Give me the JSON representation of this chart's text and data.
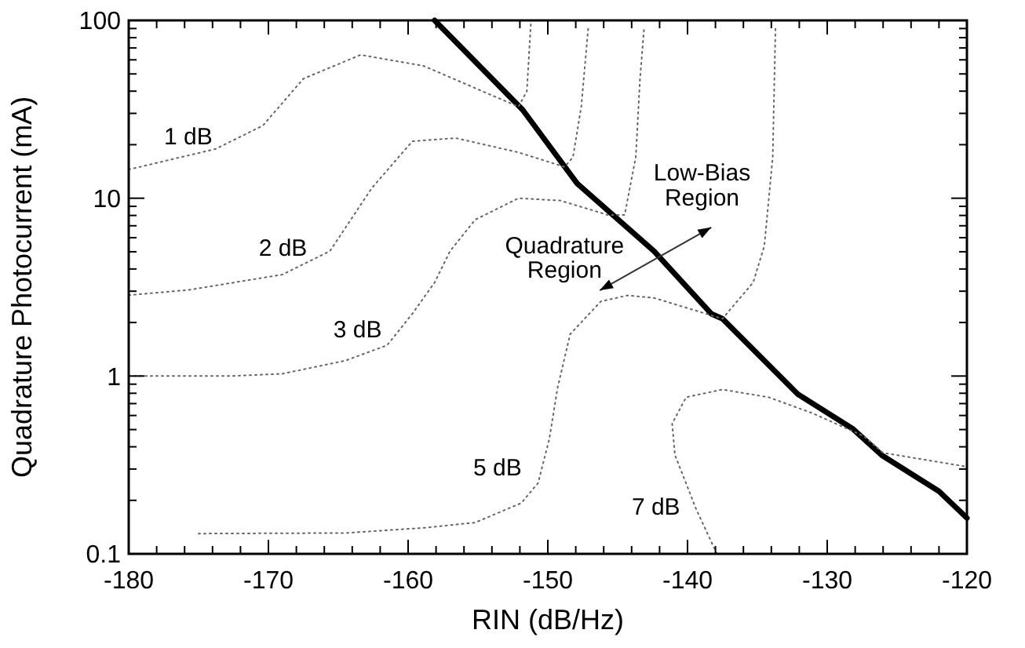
{
  "chart_data": {
    "type": "line",
    "xlabel": "RIN (dB/Hz)",
    "ylabel": "Quadrature Photocurrent (mA)",
    "log": "y",
    "grid": false,
    "xlim": [
      -180,
      -120
    ],
    "xticks": [
      {
        "value": -180,
        "label": "-180"
      },
      {
        "value": -178,
        "label": null
      },
      {
        "value": -176,
        "label": null
      },
      {
        "value": -174,
        "label": null
      },
      {
        "value": -172,
        "label": null
      },
      {
        "value": -170,
        "label": "-170"
      },
      {
        "value": -168,
        "label": null
      },
      {
        "value": -166,
        "label": null
      },
      {
        "value": -164,
        "label": null
      },
      {
        "value": -162,
        "label": null
      },
      {
        "value": -160,
        "label": "-160"
      },
      {
        "value": -158,
        "label": null
      },
      {
        "value": -156,
        "label": null
      },
      {
        "value": -154,
        "label": null
      },
      {
        "value": -152,
        "label": null
      },
      {
        "value": -150,
        "label": "-150"
      },
      {
        "value": -148,
        "label": null
      },
      {
        "value": -146,
        "label": null
      },
      {
        "value": -144,
        "label": null
      },
      {
        "value": -142,
        "label": null
      },
      {
        "value": -140,
        "label": "-140"
      },
      {
        "value": -138,
        "label": null
      },
      {
        "value": -136,
        "label": null
      },
      {
        "value": -134,
        "label": null
      },
      {
        "value": -132,
        "label": null
      },
      {
        "value": -130,
        "label": "-130"
      },
      {
        "value": -128,
        "label": null
      },
      {
        "value": -126,
        "label": null
      },
      {
        "value": -124,
        "label": null
      },
      {
        "value": -122,
        "label": null
      },
      {
        "value": -120,
        "label": "-120"
      }
    ],
    "ylim": [
      0.1,
      100
    ],
    "yticks": [
      0.1,
      {
        "value": 0.2,
        "label": null
      },
      {
        "value": 0.3,
        "label": null
      },
      {
        "value": 0.4,
        "label": null
      },
      {
        "value": 0.5,
        "label": null
      },
      {
        "value": 0.6,
        "label": null
      },
      {
        "value": 0.7,
        "label": null
      },
      {
        "value": 0.8,
        "label": null
      },
      {
        "value": 0.9,
        "label": null
      },
      1,
      {
        "value": 2,
        "label": null
      },
      {
        "value": 3,
        "label": null
      },
      {
        "value": 4,
        "label": null
      },
      {
        "value": 5,
        "label": null
      },
      {
        "value": 6,
        "label": null
      },
      {
        "value": 7,
        "label": null
      },
      {
        "value": 8,
        "label": null
      },
      {
        "value": 9,
        "label": null
      },
      10,
      {
        "value": 20,
        "label": null
      },
      {
        "value": 30,
        "label": null
      },
      {
        "value": 40,
        "label": null
      },
      {
        "value": 50,
        "label": null
      },
      {
        "value": 60,
        "label": null
      },
      {
        "value": 70,
        "label": null
      },
      {
        "value": 80,
        "label": null
      },
      {
        "value": 90,
        "label": null
      },
      100
    ],
    "series": [
      {
        "color": "#000000",
        "line_style": "solid",
        "x": [
          -158.1,
          -151.8,
          -147.9,
          -142.4,
          -138.3,
          -137.5,
          -132.1,
          -128.2,
          -126.1,
          -122.0,
          -120
        ],
        "values": [
          100,
          31.4,
          12.1,
          5.04,
          2.24,
          2.1,
          0.79,
          0.507,
          0.359,
          0.225,
          0.159
        ]
      },
      {
        "color": "#666666",
        "line_style": "dotted",
        "x": [
          -180,
          -173.8,
          -170.4,
          -167.5,
          -163.4,
          -158.9,
          -152.1,
          -151.5,
          -151.2
        ],
        "values": [
          14.5,
          18.9,
          25.6,
          47,
          64,
          55.5,
          32.7,
          40,
          100
        ]
      },
      {
        "color": "#666666",
        "line_style": "dotted",
        "x": [
          -180,
          -175.7,
          -169,
          -165.6,
          -162.6,
          -159.7,
          -156.6,
          -152.1,
          -148.8,
          -148.2,
          -147.6,
          -147.1
        ],
        "values": [
          2.85,
          3.05,
          3.72,
          5.04,
          11.4,
          20.9,
          21.8,
          18.1,
          15,
          17,
          33,
          92
        ]
      },
      {
        "color": "#666666",
        "line_style": "dotted",
        "x": [
          -180,
          -172.7,
          -169,
          -164.5,
          -161.5,
          -159.7,
          -158.1,
          -157,
          -155.2,
          -152.1,
          -149.1,
          -145.7,
          -144.5,
          -143.7,
          -143.4,
          -143.1
        ],
        "values": [
          1.0,
          1.0,
          1.03,
          1.22,
          1.49,
          2.24,
          3.36,
          5.04,
          7.57,
          10,
          9.7,
          8.05,
          8.05,
          17.1,
          47,
          92
        ]
      },
      {
        "color": "#666666",
        "line_style": "dotted",
        "x": [
          -175,
          -164.5,
          -158.9,
          -155.2,
          -151.9,
          -150.7,
          -149.9,
          -149.3,
          -148.4,
          -146.2,
          -144.3,
          -142.4,
          -137.5,
          -135.3,
          -134.5,
          -133.9,
          -133.7
        ],
        "values": [
          0.13,
          0.131,
          0.14,
          0.15,
          0.193,
          0.25,
          0.44,
          0.86,
          1.72,
          2.63,
          2.84,
          2.75,
          2.1,
          3.36,
          5.4,
          17.1,
          92
        ]
      },
      {
        "color": "#666666",
        "line_style": "dotted",
        "x": [
          -137.9,
          -139.4,
          -140.9,
          -141.1,
          -140.1,
          -137.5,
          -134.2,
          -131.1,
          -127.4,
          -126,
          -120.1
        ],
        "values": [
          0.1,
          0.18,
          0.36,
          0.54,
          0.76,
          0.84,
          0.76,
          0.62,
          0.46,
          0.37,
          0.31
        ]
      }
    ],
    "annotations": [
      "1 dB",
      "2 dB",
      "3 dB",
      "5 dB",
      "7 dB",
      "Quadrature\nRegion",
      "Low-Bias\nRegion"
    ]
  }
}
